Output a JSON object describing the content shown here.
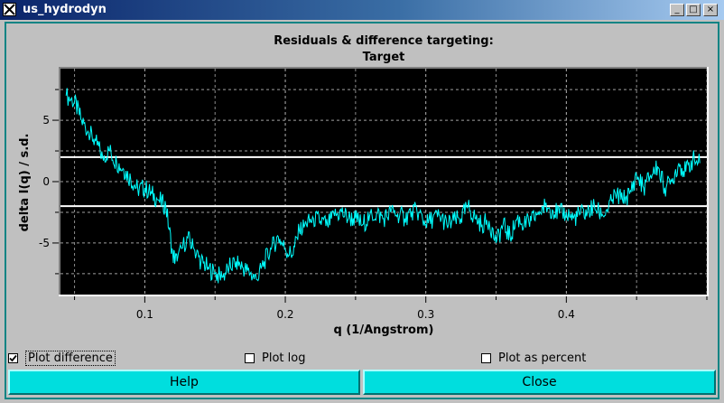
{
  "window": {
    "title": "us_hydrodyn",
    "minimize_glyph": "_",
    "maximize_glyph": "□",
    "close_glyph": "×"
  },
  "chart_data": {
    "type": "line",
    "title": "Residuals & difference targeting:",
    "subtitle": "Target",
    "xlabel": "q (1/Angstrom)",
    "ylabel": "delta I(q) / s.d.",
    "xlim": [
      0.04,
      0.5
    ],
    "ylim": [
      -9.2,
      9.2
    ],
    "x_ticks": [
      0.1,
      0.2,
      0.3,
      0.4
    ],
    "x_tick_labels": [
      "0.1",
      "0.2",
      "0.3",
      "0.4"
    ],
    "y_ticks": [
      5,
      0,
      -5
    ],
    "y_tick_labels": [
      "5",
      "0",
      "-5"
    ],
    "grid": true,
    "background": "#000000",
    "series": [
      {
        "color": "#00ffff",
        "x": [
          0.044,
          0.05,
          0.055,
          0.06,
          0.065,
          0.07,
          0.075,
          0.08,
          0.085,
          0.09,
          0.095,
          0.1,
          0.105,
          0.11,
          0.115,
          0.12,
          0.123,
          0.13,
          0.135,
          0.14,
          0.145,
          0.15,
          0.155,
          0.16,
          0.165,
          0.17,
          0.175,
          0.18,
          0.185,
          0.19,
          0.195,
          0.2,
          0.205,
          0.21,
          0.215,
          0.22,
          0.225,
          0.23,
          0.235,
          0.24,
          0.245,
          0.25,
          0.255,
          0.26,
          0.265,
          0.27,
          0.275,
          0.28,
          0.285,
          0.29,
          0.295,
          0.3,
          0.305,
          0.31,
          0.315,
          0.32,
          0.325,
          0.33,
          0.335,
          0.34,
          0.345,
          0.35,
          0.355,
          0.36,
          0.365,
          0.37,
          0.375,
          0.38,
          0.385,
          0.39,
          0.395,
          0.4,
          0.405,
          0.41,
          0.415,
          0.42,
          0.425,
          0.43,
          0.435,
          0.44,
          0.445,
          0.45,
          0.455,
          0.46,
          0.465,
          0.47,
          0.475,
          0.48,
          0.485,
          0.49,
          0.495
        ],
        "y": [
          7.0,
          6.5,
          5.0,
          4.0,
          3.3,
          2.0,
          2.5,
          1.5,
          1.0,
          0.2,
          -0.6,
          -0.5,
          -1.0,
          -1.5,
          -2.0,
          -6.0,
          -6.5,
          -4.5,
          -5.5,
          -6.5,
          -7.0,
          -7.5,
          -7.8,
          -7.0,
          -6.5,
          -7.0,
          -7.5,
          -8.0,
          -6.5,
          -5.5,
          -4.5,
          -5.5,
          -6.0,
          -4.0,
          -3.5,
          -3.0,
          -3.2,
          -3.5,
          -2.8,
          -2.5,
          -3.0,
          -3.0,
          -3.5,
          -2.8,
          -2.6,
          -3.0,
          -2.5,
          -2.6,
          -3.0,
          -2.4,
          -2.5,
          -3.5,
          -3.0,
          -2.8,
          -3.5,
          -3.2,
          -3.0,
          -2.0,
          -3.0,
          -3.5,
          -3.2,
          -5.0,
          -3.5,
          -4.5,
          -3.0,
          -3.5,
          -3.2,
          -2.5,
          -2.0,
          -2.3,
          -2.6,
          -2.5,
          -3.0,
          -2.6,
          -2.5,
          -2.0,
          -2.8,
          -2.2,
          -1.0,
          -1.5,
          -1.0,
          0.5,
          -0.5,
          0.5,
          1.2,
          -0.5,
          0.0,
          1.5,
          0.8,
          1.8,
          1.5
        ]
      }
    ],
    "reference_lines": [
      2,
      -2
    ],
    "reference_color": "#ffffff"
  },
  "controls": {
    "plot_difference": {
      "label": "Plot difference",
      "checked": true
    },
    "plot_log": {
      "label": "Plot log",
      "checked": false
    },
    "plot_as_percent": {
      "label": "Plot as percent",
      "checked": false
    }
  },
  "buttons": {
    "help": "Help",
    "close": "Close"
  },
  "colors": {
    "title_bar": "#0a246a",
    "frame": "#0d8484",
    "button_face": "#00dede",
    "trace": "#00ffff"
  }
}
